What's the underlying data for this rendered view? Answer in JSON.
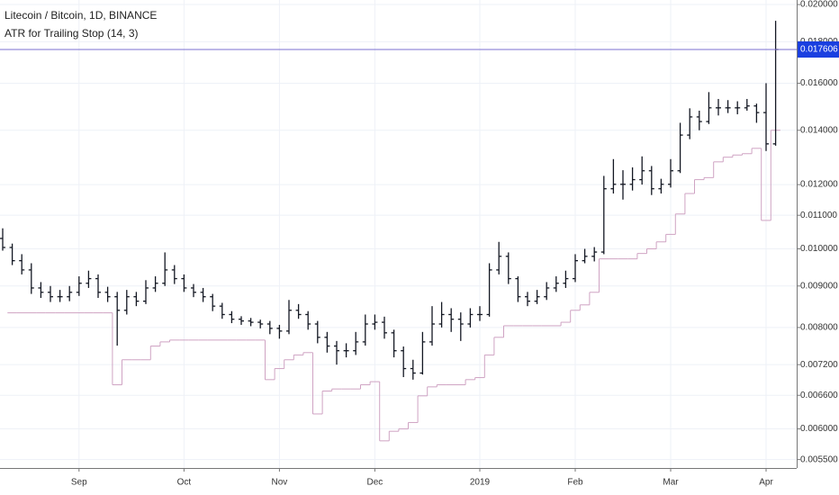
{
  "chart_data": {
    "type": "ohlc",
    "title": "Litecoin / Bitcoin, 1D, BINANCE",
    "log": true,
    "grid": true,
    "bar_color": "#131722",
    "price_line_color": "#7b6fd0",
    "price_label_color": "#1a3fe0",
    "categories": [
      null,
      null,
      null,
      null,
      null,
      null,
      null,
      null,
      "Sep",
      null,
      null,
      null,
      null,
      null,
      null,
      null,
      null,
      null,
      null,
      "Oct",
      null,
      null,
      null,
      null,
      null,
      null,
      null,
      null,
      null,
      "Nov",
      null,
      null,
      null,
      null,
      null,
      null,
      null,
      null,
      null,
      "Dec",
      null,
      null,
      null,
      null,
      null,
      null,
      null,
      null,
      null,
      null,
      "2019",
      null,
      null,
      null,
      null,
      null,
      null,
      null,
      null,
      null,
      "Feb",
      null,
      null,
      null,
      null,
      null,
      null,
      null,
      null,
      null,
      "Mar",
      null,
      null,
      null,
      null,
      null,
      null,
      null,
      null,
      null,
      "Apr",
      null
    ],
    "open": [
      0.0103,
      0.01004,
      0.00967,
      0.00942,
      0.00895,
      0.00884,
      0.00873,
      0.00873,
      0.00884,
      0.00907,
      0.00919,
      0.00884,
      0.00873,
      0.0084,
      0.00873,
      0.00862,
      0.00895,
      0.00907,
      0.00942,
      0.00919,
      0.00895,
      0.00884,
      0.00873,
      0.0085,
      0.0083,
      0.00819,
      0.00815,
      0.00812,
      0.00808,
      0.00798,
      0.00792,
      0.0084,
      0.0083,
      0.00808,
      0.00778,
      0.00759,
      0.00749,
      0.00749,
      0.00768,
      0.00808,
      0.00812,
      0.00788,
      0.00749,
      0.00712,
      0.00703,
      0.00768,
      0.00808,
      0.0083,
      0.00819,
      0.00808,
      0.0083,
      0.0083,
      0.00942,
      0.00979,
      0.00919,
      0.00873,
      0.00862,
      0.00873,
      0.00895,
      0.00907,
      0.00919,
      0.00967,
      0.00979,
      0.00991,
      0.01186,
      0.01201,
      0.01201,
      0.01217,
      0.01248,
      0.01186,
      0.01201,
      0.01248,
      0.01381,
      0.01454,
      0.01435,
      0.01492,
      0.01492,
      0.01492,
      0.01492,
      0.015,
      0.01472,
      0.01347
    ],
    "high": [
      0.0106,
      0.01015,
      0.00985,
      0.0096,
      0.0091,
      0.009,
      0.0089,
      0.009,
      0.00925,
      0.0094,
      0.0093,
      0.00898,
      0.00885,
      0.0089,
      0.00885,
      0.00915,
      0.00925,
      0.0099,
      0.00955,
      0.0093,
      0.00905,
      0.00895,
      0.0088,
      0.00858,
      0.00838,
      0.00826,
      0.00822,
      0.00818,
      0.00815,
      0.00806,
      0.00865,
      0.00855,
      0.00838,
      0.00815,
      0.0079,
      0.0077,
      0.00765,
      0.0079,
      0.0083,
      0.0083,
      0.00825,
      0.00795,
      0.00758,
      0.0073,
      0.0079,
      0.0085,
      0.0086,
      0.00845,
      0.00835,
      0.00845,
      0.0085,
      0.0096,
      0.0102,
      0.0099,
      0.00925,
      0.00885,
      0.0089,
      0.0091,
      0.00925,
      0.0094,
      0.00985,
      0.01,
      0.01005,
      0.0123,
      0.0129,
      0.0125,
      0.0126,
      0.013,
      0.01265,
      0.0122,
      0.0129,
      0.0143,
      0.0149,
      0.0148,
      0.0156,
      0.0153,
      0.01525,
      0.0152,
      0.0153,
      0.0151,
      0.016,
      0.0191
    ],
    "low": [
      0.00995,
      0.00955,
      0.0093,
      0.0088,
      0.0087,
      0.0086,
      0.0086,
      0.00862,
      0.00875,
      0.00895,
      0.0087,
      0.0086,
      0.0076,
      0.0083,
      0.0085,
      0.00855,
      0.00885,
      0.009,
      0.00905,
      0.00885,
      0.00872,
      0.0086,
      0.00838,
      0.0082,
      0.0081,
      0.00806,
      0.00803,
      0.00798,
      0.00785,
      0.00775,
      0.00785,
      0.0082,
      0.00795,
      0.00765,
      0.00745,
      0.0072,
      0.00735,
      0.0074,
      0.0076,
      0.00795,
      0.00775,
      0.00735,
      0.00695,
      0.0069,
      0.007,
      0.0076,
      0.008,
      0.0079,
      0.0077,
      0.008,
      0.00815,
      0.00825,
      0.0093,
      0.00905,
      0.0086,
      0.0085,
      0.00855,
      0.00865,
      0.00885,
      0.00895,
      0.0091,
      0.0096,
      0.00965,
      0.00985,
      0.0117,
      0.0115,
      0.0118,
      0.012,
      0.01165,
      0.0117,
      0.0119,
      0.0124,
      0.01365,
      0.014,
      0.01425,
      0.0146,
      0.0147,
      0.01465,
      0.0148,
      0.0143,
      0.0132,
      0.0134
    ],
    "close": [
      0.01004,
      0.00967,
      0.00942,
      0.00895,
      0.00884,
      0.00873,
      0.00873,
      0.00884,
      0.00907,
      0.00919,
      0.00884,
      0.00873,
      0.0084,
      0.00873,
      0.00862,
      0.00895,
      0.00907,
      0.00942,
      0.00919,
      0.00895,
      0.00884,
      0.00873,
      0.0085,
      0.0083,
      0.00819,
      0.00815,
      0.00812,
      0.00808,
      0.00798,
      0.00792,
      0.0084,
      0.0083,
      0.00808,
      0.00778,
      0.00759,
      0.00749,
      0.00749,
      0.00768,
      0.00808,
      0.00812,
      0.00788,
      0.00749,
      0.00712,
      0.00703,
      0.00768,
      0.00808,
      0.0083,
      0.00819,
      0.00808,
      0.0083,
      0.0083,
      0.00942,
      0.00979,
      0.00919,
      0.00873,
      0.00862,
      0.00873,
      0.00895,
      0.00907,
      0.00919,
      0.00967,
      0.00979,
      0.00991,
      0.01186,
      0.01201,
      0.01201,
      0.01217,
      0.01248,
      0.01186,
      0.01201,
      0.01248,
      0.01381,
      0.01454,
      0.01435,
      0.01492,
      0.01492,
      0.01492,
      0.01492,
      0.015,
      0.01472,
      0.01347,
      0.017606
    ],
    "stop": {
      "name": "ATR for Trailing Stop (14, 3)",
      "color": "#cfa3c3",
      "values": [
        null,
        0.00834,
        0.00834,
        0.00834,
        0.00834,
        0.00834,
        0.00834,
        0.00834,
        0.00834,
        0.00834,
        0.00834,
        0.00834,
        0.0068,
        0.0073,
        0.0073,
        0.0073,
        0.00759,
        0.00768,
        0.00772,
        0.00772,
        0.00772,
        0.00772,
        0.00772,
        0.00772,
        0.00772,
        0.00772,
        0.00772,
        0.00772,
        0.0069,
        0.00712,
        0.0073,
        0.0074,
        0.00745,
        0.00626,
        0.00668,
        0.00672,
        0.00672,
        0.00672,
        0.0068,
        0.00686,
        0.0058,
        0.00596,
        0.006,
        0.00611,
        0.00659,
        0.00676,
        0.0068,
        0.0068,
        0.0068,
        0.0069,
        0.00694,
        0.0074,
        0.00778,
        0.00804,
        0.00804,
        0.00804,
        0.00804,
        0.00804,
        0.00804,
        0.00812,
        0.0084,
        0.00853,
        0.00884,
        0.00972,
        0.00972,
        0.00972,
        0.00972,
        0.00987,
        0.01,
        0.0102,
        0.01042,
        0.01104,
        0.0117,
        0.01217,
        0.01224,
        0.0128,
        0.01297,
        0.01305,
        0.0131,
        0.0133,
        0.01084,
        0.014
      ]
    },
    "ylim": [
      0.00537,
      0.02026
    ],
    "yticks": [
      {
        "value": 0.02,
        "label": "0.020000"
      },
      {
        "value": 0.018,
        "label": "0.018000"
      },
      {
        "value": 0.016,
        "label": "0.016000"
      },
      {
        "value": 0.014,
        "label": "0.014000"
      },
      {
        "value": 0.012,
        "label": "0.012000"
      },
      {
        "value": 0.011,
        "label": "0.011000"
      },
      {
        "value": 0.01,
        "label": "0.010000"
      },
      {
        "value": 0.009,
        "label": "0.009000"
      },
      {
        "value": 0.008,
        "label": "0.008000"
      },
      {
        "value": 0.0072,
        "label": "0.007200"
      },
      {
        "value": 0.0066,
        "label": "0.006600"
      },
      {
        "value": 0.006,
        "label": "0.006000"
      },
      {
        "value": 0.0055,
        "label": "0.005500"
      }
    ]
  }
}
